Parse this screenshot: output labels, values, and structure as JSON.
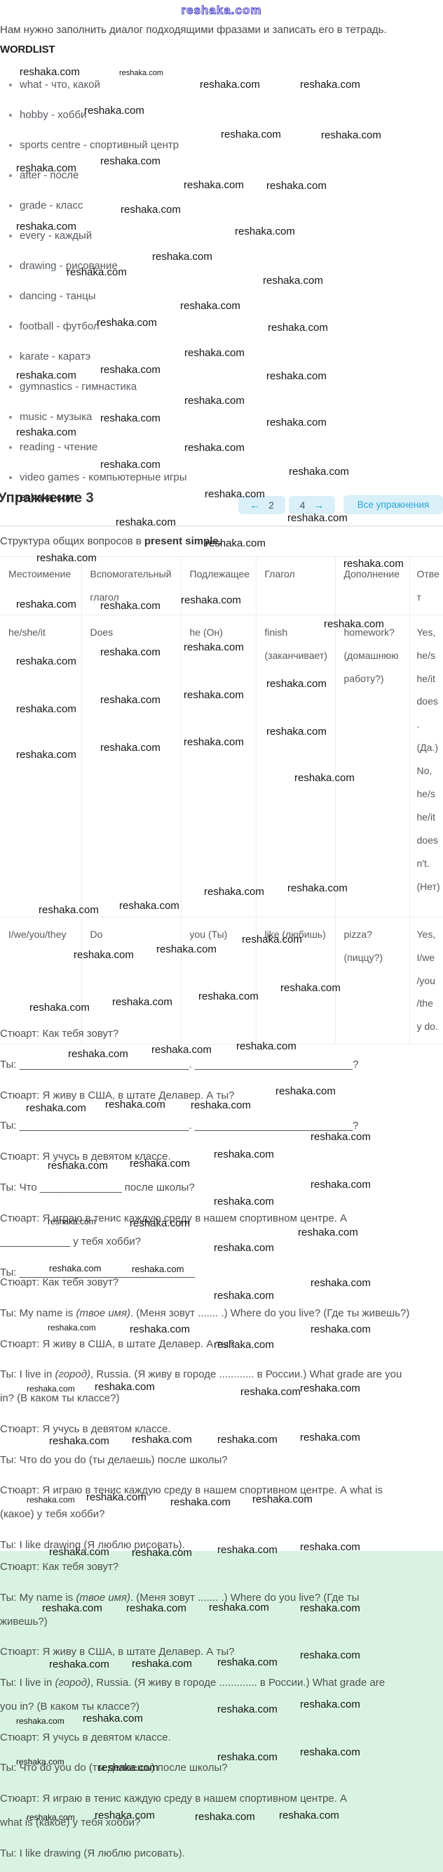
{
  "watermark": {
    "text": "reshaka.com",
    "top_color": "#4a43c8",
    "body_color": "#151515",
    "positions": [
      [
        28,
        95
      ],
      [
        170,
        99,
        11
      ],
      [
        285,
        113
      ],
      [
        428,
        113
      ],
      [
        120,
        150
      ],
      [
        315,
        184
      ],
      [
        458,
        185
      ],
      [
        143,
        222
      ],
      [
        23,
        232
      ],
      [
        262,
        256
      ],
      [
        380,
        257
      ],
      [
        172,
        291
      ],
      [
        23,
        315
      ],
      [
        335,
        322
      ],
      [
        217,
        358
      ],
      [
        95,
        380
      ],
      [
        375,
        392
      ],
      [
        257,
        428
      ],
      [
        138,
        452
      ],
      [
        382,
        459
      ],
      [
        263,
        495
      ],
      [
        143,
        519
      ],
      [
        23,
        527
      ],
      [
        380,
        528
      ],
      [
        263,
        563
      ],
      [
        143,
        588
      ],
      [
        380,
        594
      ],
      [
        23,
        608
      ],
      [
        263,
        630
      ],
      [
        143,
        654
      ],
      [
        412,
        664
      ],
      [
        23,
        701
      ],
      [
        292,
        696
      ],
      [
        165,
        736
      ],
      [
        410,
        730
      ],
      [
        293,
        766
      ],
      [
        52,
        787
      ],
      [
        490,
        795
      ],
      [
        23,
        853
      ],
      [
        143,
        855
      ],
      [
        258,
        847
      ],
      [
        462,
        881
      ],
      [
        143,
        921
      ],
      [
        262,
        914
      ],
      [
        23,
        934
      ],
      [
        380,
        966
      ],
      [
        262,
        982
      ],
      [
        143,
        989
      ],
      [
        23,
        1002
      ],
      [
        380,
        1034
      ],
      [
        262,
        1049
      ],
      [
        143,
        1057
      ],
      [
        23,
        1067
      ],
      [
        420,
        1100
      ],
      [
        291,
        1262
      ],
      [
        410,
        1257
      ],
      [
        170,
        1282
      ],
      [
        55,
        1288
      ],
      [
        345,
        1330
      ],
      [
        223,
        1344
      ],
      [
        105,
        1352
      ],
      [
        400,
        1399
      ],
      [
        283,
        1411
      ],
      [
        160,
        1419
      ],
      [
        42,
        1427
      ],
      [
        337,
        1482
      ],
      [
        216,
        1487
      ],
      [
        97,
        1493
      ],
      [
        393,
        1546
      ],
      [
        150,
        1565
      ],
      [
        37,
        1570
      ],
      [
        272,
        1566
      ],
      [
        443,
        1611
      ],
      [
        305,
        1636
      ],
      [
        185,
        1649
      ],
      [
        68,
        1652
      ],
      [
        443,
        1679
      ],
      [
        305,
        1703
      ],
      [
        68,
        1733,
        12
      ],
      [
        185,
        1734
      ],
      [
        425,
        1747
      ],
      [
        305,
        1769
      ],
      [
        70,
        1799,
        13
      ],
      [
        188,
        1800,
        13
      ],
      [
        443,
        1819
      ],
      [
        305,
        1837
      ],
      [
        68,
        1884,
        12
      ],
      [
        185,
        1885
      ],
      [
        443,
        1885
      ],
      [
        305,
        1907
      ],
      [
        38,
        1971,
        12
      ],
      [
        135,
        1967
      ],
      [
        343,
        1974
      ],
      [
        428,
        1969
      ],
      [
        70,
        2044
      ],
      [
        188,
        2042
      ],
      [
        310,
        2042
      ],
      [
        428,
        2039
      ],
      [
        38,
        2129,
        12
      ],
      [
        123,
        2124
      ],
      [
        243,
        2131
      ],
      [
        360,
        2127
      ],
      [
        70,
        2202
      ],
      [
        188,
        2203
      ],
      [
        310,
        2199
      ],
      [
        428,
        2195
      ],
      [
        60,
        2282
      ],
      [
        180,
        2282
      ],
      [
        298,
        2281
      ],
      [
        428,
        2282
      ],
      [
        428,
        2349
      ],
      [
        70,
        2362
      ],
      [
        188,
        2361
      ],
      [
        310,
        2359
      ],
      [
        310,
        2426
      ],
      [
        428,
        2419
      ],
      [
        23,
        2444,
        12
      ],
      [
        118,
        2439
      ],
      [
        310,
        2494
      ],
      [
        428,
        2487
      ],
      [
        23,
        2502,
        12
      ],
      [
        140,
        2509
      ],
      [
        38,
        2581,
        12
      ],
      [
        135,
        2577
      ],
      [
        278,
        2579
      ],
      [
        398,
        2577
      ]
    ]
  },
  "intro": "Нам нужно заполнить диалог подходящими фразами и записать его в тетрадь.",
  "wordlist": {
    "title": "WORDLIST",
    "items": [
      "what - что, какой",
      "hobby - хобби",
      "sports centre - спортивный центр",
      "after - после",
      "grade - класс",
      "every - каждый",
      "drawing - рисование",
      "dancing - танцы",
      "football - футбол",
      "karate - каратэ",
      "gymnastics - гимнастика",
      "music - музыка",
      "reading - чтение",
      "video games - компьютерные игры"
    ]
  },
  "exercise": {
    "title": "Упражнение 3",
    "nav": {
      "prev_arrow": "←",
      "prev_label": "2",
      "next_label": "4",
      "next_arrow": "→",
      "all_label": "Все упражнения"
    },
    "accent_color": "#2aa5da",
    "pill_bg": "#d9f0f8"
  },
  "grammar": {
    "lead_text": "Структура общих вопросов в ",
    "lead_bold": "present simple.",
    "table": {
      "headers": [
        "Местоимение",
        "Вспомогательный глагол",
        "Подлежащее",
        "Глагол",
        "Дополнение",
        "Ответ"
      ],
      "rows": [
        [
          "he/she/it",
          "Does",
          "he (Он)",
          "finish (заканчивает)",
          "homework? (домашнюю работу?)",
          "Yes, he/s he/it does . (Да.) No, he/s he/it does n't. (Нет)"
        ],
        [
          "I/we/you/they",
          "Do",
          "you (Ты)",
          "like (любишь)",
          "pizza? (пиццу?)",
          "Yes, I/we /you /the y do."
        ]
      ]
    }
  },
  "dialog_task": {
    "lines": [
      "Стюарт: Как тебя зовут?",
      "Ты: _____________________________. ___________________________?",
      "Стюарт: Я живу в США, в штате Делавер. А ты?",
      "Ты: _____________________________. ___________________________?",
      "Стюарт: Я учусь в девятом классе.",
      "Ты: Что ______________ после школы?",
      "Стюарт: Я играю в тенис каждую среду в нашем спортивном центре. А\n____________ у тебя хобби?",
      "Ты: ______________________________"
    ]
  },
  "dialog_answer": {
    "lines": [
      "Стюарт: Как тебя зовут?",
      {
        "parts": [
          {
            "t": "Ты: My name is "
          },
          {
            "t": "(твое имя)",
            "i": true
          },
          {
            "t": ". (Меня зовут ....... .) Where do you live? (Где ты живешь?)"
          }
        ]
      },
      "Стюарт: Я живу в США, в штате Делавер. А ты?",
      {
        "parts": [
          {
            "t": "Ты: I live in "
          },
          {
            "t": "(город)",
            "i": true
          },
          {
            "t": ", Russia. (Я живу в городе ............ в России.) What grade are you\nin? (В каком ты классе?)"
          }
        ]
      },
      "Стюарт: Я учусь в девятом классе.",
      "Ты: Что do you do (ты делаешь) после школы?",
      "Стюарт: Я играю в тенис каждую среду в нашем спортивном центре. А what is\n(какое) у тебя хобби?",
      "Ты: I like drawing (Я люблю рисовать)."
    ]
  },
  "dialog_highlight": {
    "bg_color": "#d9f3e3",
    "lines": [
      "Стюарт: Как тебя зовут?",
      {
        "parts": [
          {
            "t": "Ты: My name is "
          },
          {
            "t": "(твое имя)",
            "i": true
          },
          {
            "t": ". (Меня зовут ....... .) Where do you live? (Где ты\nживешь?)"
          }
        ]
      },
      "Стюарт: Я живу в США, в штате Делавер. А ты?",
      {
        "parts": [
          {
            "t": "Ты: I live in "
          },
          {
            "t": "(город)",
            "i": true
          },
          {
            "t": ", Russia. (Я живу в городе ............. в России.) What grade are\nyou in? (В каком ты классе?)"
          }
        ]
      },
      "Стюарт: Я учусь в девятом классе.",
      "Ты: Что do you do (ты делаешь) после школы?",
      "Стюарт: Я играю в тенис каждую среду в нашем спортивном центре. А\nwhat is (какое) у тебя хобби?",
      "Ты: I like drawing (Я люблю рисовать)."
    ]
  }
}
